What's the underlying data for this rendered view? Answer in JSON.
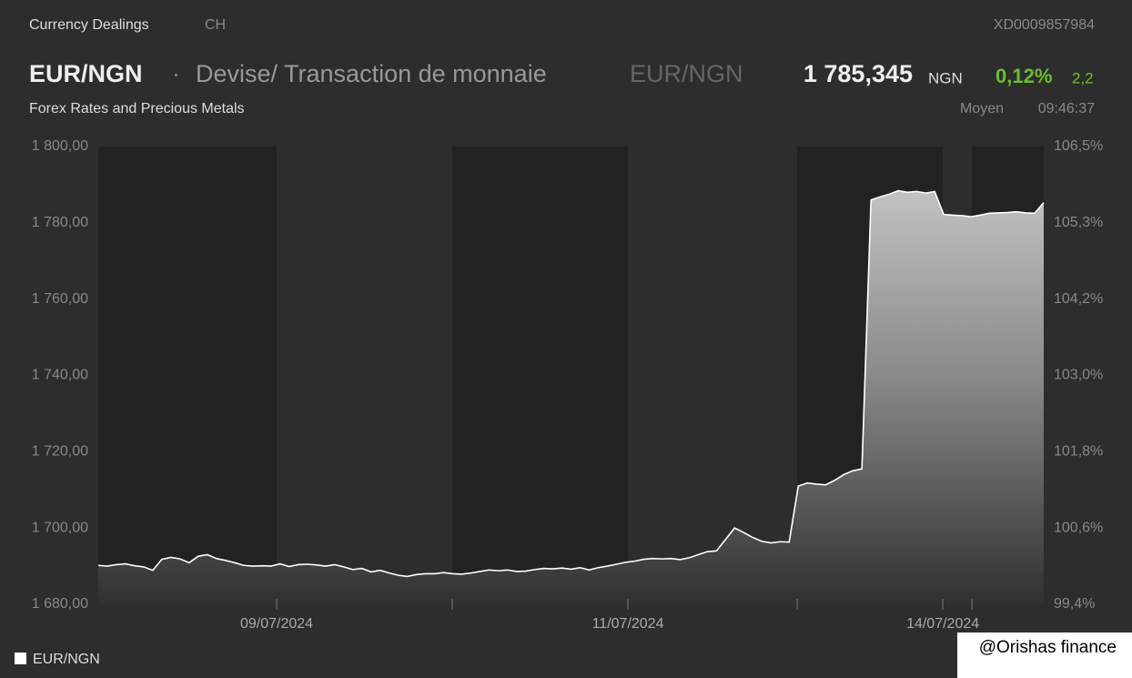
{
  "header": {
    "section": "Currency Dealings",
    "country": "CH",
    "isin": "XD0009857984",
    "symbol": "EUR/NGN",
    "separator": "·",
    "name": "Devise/ Transaction de monnaie",
    "symbol_repeat": "EUR/NGN",
    "price": "1 785,345",
    "currency": "NGN",
    "change_pct": "0,12%",
    "change": "2,2",
    "market": "Forex Rates and Precious Metals",
    "price_type": "Moyen",
    "time": "09:46:37"
  },
  "chart_data": {
    "type": "area",
    "series": [
      {
        "name": "EUR/NGN",
        "color": "#ffffff",
        "values": [
          1690.2,
          1690.0,
          1690.4,
          1690.6,
          1690.1,
          1689.8,
          1688.9,
          1691.8,
          1692.3,
          1691.9,
          1690.9,
          1692.6,
          1693.0,
          1692.0,
          1691.5,
          1690.9,
          1690.2,
          1690.0,
          1690.1,
          1690.0,
          1690.6,
          1689.9,
          1690.4,
          1690.5,
          1690.3,
          1690.0,
          1690.4,
          1689.8,
          1689.1,
          1689.4,
          1688.5,
          1688.9,
          1688.2,
          1687.6,
          1687.3,
          1687.8,
          1688.0,
          1688.0,
          1688.3,
          1688.0,
          1687.9,
          1688.2,
          1688.6,
          1689.0,
          1688.8,
          1689.0,
          1688.6,
          1688.7,
          1689.1,
          1689.4,
          1689.3,
          1689.5,
          1689.2,
          1689.6,
          1689.0,
          1689.6,
          1690.0,
          1690.5,
          1691.0,
          1691.3,
          1691.8,
          1692.0,
          1691.9,
          1692.0,
          1691.7,
          1692.2,
          1693.0,
          1693.8,
          1694.0,
          1697.0,
          1700.0,
          1698.8,
          1697.5,
          1696.5,
          1696.1,
          1696.4,
          1696.3,
          1711.0,
          1711.8,
          1711.5,
          1711.3,
          1712.5,
          1714.0,
          1715.0,
          1715.5,
          1786.0,
          1786.8,
          1787.5,
          1788.4,
          1788.0,
          1788.2,
          1787.8,
          1788.2,
          1782.2,
          1782.0,
          1781.9,
          1781.6,
          1782.0,
          1782.5,
          1782.6,
          1782.7,
          1782.9,
          1782.6,
          1782.5,
          1785.3
        ]
      }
    ],
    "xlim": [
      0,
      104
    ],
    "xticks": [
      {
        "value": 19.62,
        "label": "09/07/2024"
      },
      {
        "value": 38.94,
        "label": null
      },
      {
        "value": 58.26,
        "label": "11/07/2024"
      },
      {
        "value": 76.88,
        "label": null
      },
      {
        "value": 92.9,
        "label": "14/07/2024"
      },
      {
        "value": 96.1,
        "label": null
      }
    ],
    "ylim": [
      1680,
      1800
    ],
    "yticks": [
      {
        "value": 1680,
        "label": "1 680,00"
      },
      {
        "value": 1700,
        "label": "1 700,00"
      },
      {
        "value": 1720,
        "label": "1 720,00"
      },
      {
        "value": 1740,
        "label": "1 740,00"
      },
      {
        "value": 1760,
        "label": "1 760,00"
      },
      {
        "value": 1780,
        "label": "1 780,00"
      },
      {
        "value": 1800,
        "label": "1 800,00"
      }
    ],
    "y2lim": [
      99.4,
      106.5
    ],
    "y2ticks": [
      {
        "value": 99.4,
        "label": "99,4%"
      },
      {
        "value": 100.583,
        "label": "100,6%"
      },
      {
        "value": 101.767,
        "label": "101,8%"
      },
      {
        "value": 102.95,
        "label": "103,0%"
      },
      {
        "value": 104.133,
        "label": "104,2%"
      },
      {
        "value": 105.317,
        "label": "105,3%"
      },
      {
        "value": 106.5,
        "label": "106,5%"
      }
    ],
    "grid": false
  },
  "watermark": "@Orishas finance"
}
